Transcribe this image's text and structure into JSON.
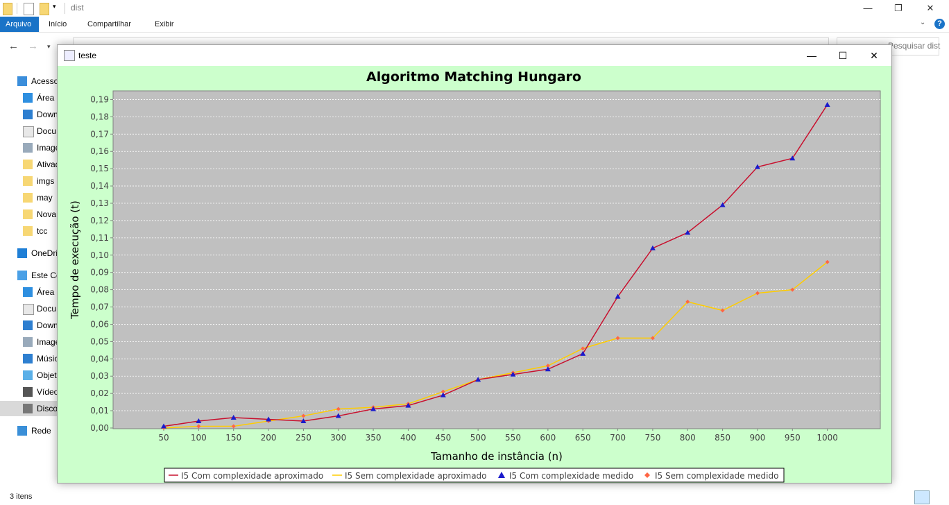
{
  "explorer": {
    "title": "dist",
    "tabs": {
      "file": "Arquivo",
      "home": "Início",
      "share": "Compartilhar",
      "view": "Exibir"
    },
    "search_placeholder": "Pesquisar dist",
    "sidebar": [
      {
        "label": "Acesso",
        "icon": "star-icon",
        "top": true
      },
      {
        "label": "Área d",
        "icon": "desktop-icon"
      },
      {
        "label": "Down",
        "icon": "download-icon"
      },
      {
        "label": "Docu",
        "icon": "document-icon"
      },
      {
        "label": "Image",
        "icon": "image-icon"
      },
      {
        "label": "Ativad",
        "icon": "folder-icon"
      },
      {
        "label": "imgs",
        "icon": "folder-icon"
      },
      {
        "label": "may",
        "icon": "folder-icon"
      },
      {
        "label": "Nova",
        "icon": "folder-icon"
      },
      {
        "label": "tcc",
        "icon": "folder-icon"
      },
      {
        "label": "OneDri",
        "icon": "cloud-icon",
        "top": true
      },
      {
        "label": "Este Co",
        "icon": "computer-icon",
        "top": true
      },
      {
        "label": "Área d",
        "icon": "desktop-icon"
      },
      {
        "label": "Docu",
        "icon": "document-icon"
      },
      {
        "label": "Down",
        "icon": "download-icon"
      },
      {
        "label": "Image",
        "icon": "image-icon"
      },
      {
        "label": "Músic",
        "icon": "music-icon"
      },
      {
        "label": "Objet",
        "icon": "cube-icon"
      },
      {
        "label": "Vídeo",
        "icon": "video-icon"
      },
      {
        "label": "Disco",
        "icon": "drive-icon",
        "selected": true
      },
      {
        "label": "Rede",
        "icon": "network-icon",
        "top": true
      }
    ],
    "status": "3 itens"
  },
  "java_window": {
    "title": "teste"
  },
  "chart_data": {
    "type": "line",
    "title": "Algoritmo Matching Hungaro",
    "xlabel": "Tamanho de instância (n)",
    "ylabel": "Tempo de execução (t)",
    "x": [
      50,
      100,
      150,
      200,
      250,
      300,
      350,
      400,
      450,
      500,
      550,
      600,
      650,
      700,
      750,
      800,
      850,
      900,
      950,
      1000
    ],
    "xticks": [
      "50",
      "100",
      "150",
      "200",
      "250",
      "300",
      "350",
      "400",
      "450",
      "500",
      "550",
      "600",
      "650",
      "700",
      "750",
      "800",
      "850",
      "900",
      "950",
      "1000"
    ],
    "ylim": [
      0,
      0.195
    ],
    "yticks": [
      "0,00",
      "0,01",
      "0,02",
      "0,03",
      "0,04",
      "0,05",
      "0,06",
      "0,07",
      "0,08",
      "0,09",
      "0,10",
      "0,11",
      "0,12",
      "0,13",
      "0,14",
      "0,15",
      "0,16",
      "0,17",
      "0,18",
      "0,19"
    ],
    "grid": true,
    "legend_position": "bottom",
    "background": "#c0c0c0",
    "series": [
      {
        "name": "I5 Com complexidade aproximado",
        "color": "#c8102e",
        "marker": "none",
        "values": [
          0.001,
          0.004,
          0.006,
          0.005,
          0.004,
          0.007,
          0.011,
          0.013,
          0.019,
          0.028,
          0.031,
          0.034,
          0.043,
          0.076,
          0.104,
          0.113,
          0.129,
          0.151,
          0.156,
          0.187
        ]
      },
      {
        "name": "I5 Sem complexidade aproximado",
        "color": "#ffcc00",
        "marker": "none",
        "values": [
          0.0,
          0.001,
          0.001,
          0.004,
          0.007,
          0.011,
          0.012,
          0.014,
          0.021,
          0.028,
          0.032,
          0.036,
          0.046,
          0.052,
          0.052,
          0.073,
          0.068,
          0.078,
          0.08,
          0.096
        ]
      },
      {
        "name": "I5 Com complexidade medido",
        "color": "#1a1acc",
        "marker": "triangle",
        "values": [
          0.001,
          0.004,
          0.006,
          0.005,
          0.004,
          0.007,
          0.011,
          0.013,
          0.019,
          0.028,
          0.031,
          0.034,
          0.043,
          0.076,
          0.104,
          0.113,
          0.129,
          0.151,
          0.156,
          0.187
        ]
      },
      {
        "name": "I5 Sem complexidade medido",
        "color": "#ff6644",
        "marker": "diamond",
        "values": [
          0.0,
          0.001,
          0.001,
          0.004,
          0.007,
          0.011,
          0.012,
          0.014,
          0.021,
          0.028,
          0.032,
          0.036,
          0.046,
          0.052,
          0.052,
          0.073,
          0.068,
          0.078,
          0.08,
          0.096
        ]
      }
    ]
  }
}
